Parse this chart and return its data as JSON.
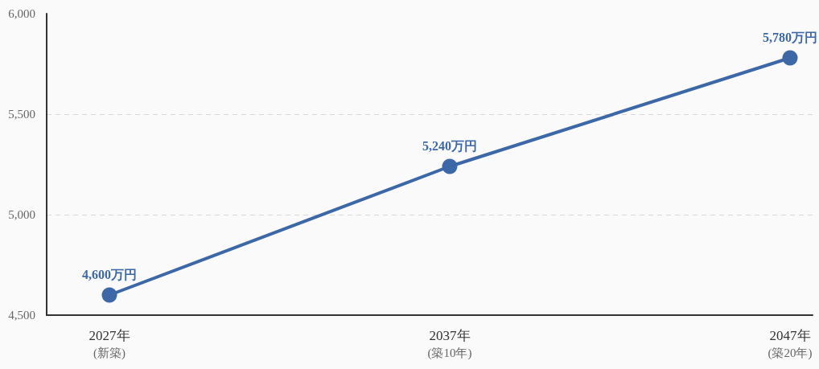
{
  "chart_data": {
    "type": "line",
    "categories": [
      "2027年\n(新築)",
      "2037年\n(築10年)",
      "2047年\n(築20年)"
    ],
    "series": [
      {
        "color": "#3d68a8",
        "values": [
          4600,
          5240,
          5780
        ],
        "value_labels": [
          "4,600万円",
          "5,240万円",
          "5,780万円"
        ]
      }
    ],
    "ylim": [
      4500,
      6000
    ],
    "yticks": [
      {
        "value": 4500,
        "label": "4,500"
      },
      {
        "value": 5000,
        "label": "5,000"
      },
      {
        "value": 5500,
        "label": "5,500"
      },
      {
        "value": 6000,
        "label": "6,000"
      }
    ],
    "grid": "y",
    "marker": "circle",
    "line_style": "solid"
  }
}
